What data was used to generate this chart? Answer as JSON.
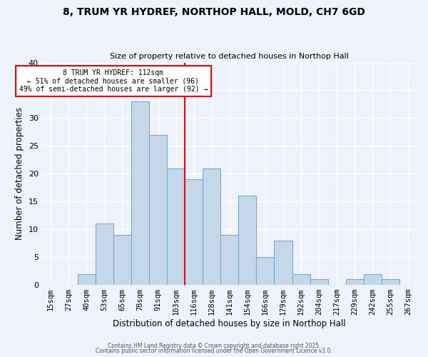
{
  "title": "8, TRUM YR HYDREF, NORTHOP HALL, MOLD, CH7 6GD",
  "subtitle": "Size of property relative to detached houses in Northop Hall",
  "xlabel": "Distribution of detached houses by size in Northop Hall",
  "ylabel": "Number of detached properties",
  "bin_labels": [
    "15sqm",
    "27sqm",
    "40sqm",
    "53sqm",
    "65sqm",
    "78sqm",
    "91sqm",
    "103sqm",
    "116sqm",
    "128sqm",
    "141sqm",
    "154sqm",
    "166sqm",
    "179sqm",
    "192sqm",
    "204sqm",
    "217sqm",
    "229sqm",
    "242sqm",
    "255sqm",
    "267sqm"
  ],
  "bar_heights": [
    0,
    0,
    2,
    11,
    9,
    33,
    27,
    21,
    19,
    21,
    9,
    16,
    5,
    8,
    2,
    1,
    0,
    1,
    2,
    1,
    0
  ],
  "bar_color": "#c5d8ea",
  "bar_edge_color": "#7aaac8",
  "vline_x": 7.5,
  "vline_color": "red",
  "annotation_title": "8 TRUM YR HYDREF: 112sqm",
  "annotation_line1": "← 51% of detached houses are smaller (96)",
  "annotation_line2": "49% of semi-detached houses are larger (92) →",
  "annotation_box_color": "white",
  "annotation_box_edgecolor": "red",
  "ylim": [
    0,
    40
  ],
  "yticks": [
    0,
    5,
    10,
    15,
    20,
    25,
    30,
    35,
    40
  ],
  "background_color": "#eef2fb",
  "grid_color": "white",
  "footer1": "Contains HM Land Registry data © Crown copyright and database right 2025.",
  "footer2": "Contains public sector information licensed under the Open Government Licence v3.0."
}
